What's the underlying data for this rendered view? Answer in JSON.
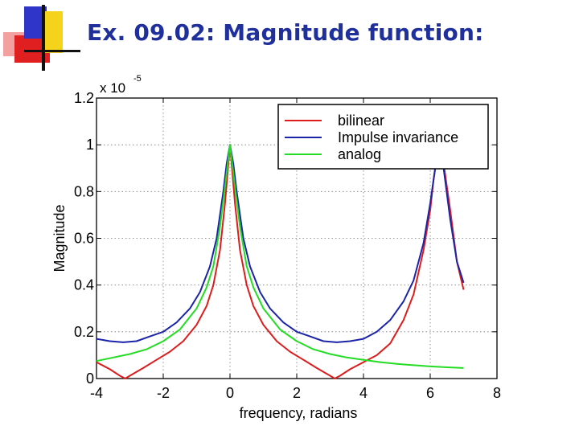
{
  "slide": {
    "title": "Ex. 09.02: Magnitude function:"
  },
  "logo": {
    "colors": {
      "red": "#e02020",
      "blue": "#2f35c9",
      "yellow": "#f5d31a",
      "pink": "#f2a0a0",
      "black": "#111111"
    }
  },
  "chart_data": {
    "type": "line",
    "title": "",
    "xlabel": "frequency, radians",
    "ylabel": "Magnitude",
    "y_scale_label": "x 10",
    "y_scale_exponent": "-5",
    "xlim": [
      -4,
      8
    ],
    "ylim": [
      0,
      1.2
    ],
    "x_ticks": [
      -4,
      -2,
      0,
      2,
      4,
      6,
      8
    ],
    "y_ticks": [
      0,
      0.2,
      0.4,
      0.6,
      0.8,
      1,
      1.2
    ],
    "x_tick_labels": [
      "-4",
      "-2",
      "0",
      "2",
      "4",
      "6",
      "8"
    ],
    "y_tick_labels": [
      "0",
      "0.2",
      "0.4",
      "0.6",
      "0.8",
      "1",
      "1.2"
    ],
    "grid": true,
    "legend_position": "top-right",
    "series": [
      {
        "name": "bilinear",
        "color": "#dd1c1c",
        "x": [
          -4.0,
          -3.6,
          -3.3,
          -3.14,
          -3.0,
          -2.6,
          -2.2,
          -1.8,
          -1.4,
          -1.0,
          -0.7,
          -0.5,
          -0.3,
          -0.15,
          0.0,
          0.15,
          0.3,
          0.5,
          0.7,
          1.0,
          1.4,
          1.8,
          2.2,
          2.6,
          3.0,
          3.14,
          3.3,
          3.6,
          4.0,
          4.4,
          4.8,
          5.2,
          5.5,
          5.8,
          6.0,
          6.1,
          6.2,
          6.28,
          6.4,
          6.6,
          6.8,
          7.0
        ],
        "y": [
          0.07,
          0.04,
          0.012,
          0.0,
          0.012,
          0.045,
          0.08,
          0.115,
          0.16,
          0.23,
          0.31,
          0.4,
          0.55,
          0.75,
          1.0,
          0.75,
          0.55,
          0.4,
          0.31,
          0.23,
          0.16,
          0.115,
          0.08,
          0.045,
          0.012,
          0.0,
          0.012,
          0.04,
          0.07,
          0.1,
          0.15,
          0.25,
          0.36,
          0.55,
          0.72,
          0.85,
          0.95,
          1.0,
          0.92,
          0.72,
          0.5,
          0.38
        ]
      },
      {
        "name": "Impulse invariance",
        "color": "#1c24a8",
        "x": [
          -4.0,
          -3.6,
          -3.2,
          -2.8,
          -2.4,
          -2.0,
          -1.6,
          -1.2,
          -0.9,
          -0.6,
          -0.4,
          -0.2,
          -0.1,
          0.0,
          0.1,
          0.2,
          0.4,
          0.6,
          0.9,
          1.2,
          1.6,
          2.0,
          2.4,
          2.8,
          3.2,
          3.6,
          4.0,
          4.4,
          4.8,
          5.2,
          5.5,
          5.8,
          6.0,
          6.15,
          6.28,
          6.4,
          6.6,
          6.8,
          7.0
        ],
        "y": [
          0.17,
          0.16,
          0.155,
          0.16,
          0.18,
          0.2,
          0.24,
          0.3,
          0.37,
          0.48,
          0.6,
          0.8,
          0.92,
          1.0,
          0.92,
          0.8,
          0.6,
          0.48,
          0.37,
          0.3,
          0.24,
          0.2,
          0.18,
          0.16,
          0.155,
          0.16,
          0.17,
          0.2,
          0.25,
          0.33,
          0.42,
          0.58,
          0.75,
          0.9,
          1.0,
          0.9,
          0.68,
          0.5,
          0.41
        ]
      },
      {
        "name": "analog",
        "color": "#22dd22",
        "x": [
          -4.0,
          -3.5,
          -3.0,
          -2.5,
          -2.0,
          -1.5,
          -1.0,
          -0.7,
          -0.5,
          -0.3,
          -0.15,
          0.0,
          0.15,
          0.3,
          0.5,
          0.7,
          1.0,
          1.5,
          2.0,
          2.5,
          3.0,
          3.5,
          4.0,
          4.5,
          5.0,
          5.5,
          6.0,
          6.5,
          7.0
        ],
        "y": [
          0.075,
          0.09,
          0.105,
          0.125,
          0.16,
          0.21,
          0.3,
          0.39,
          0.48,
          0.65,
          0.82,
          1.0,
          0.82,
          0.65,
          0.48,
          0.39,
          0.3,
          0.21,
          0.16,
          0.125,
          0.105,
          0.09,
          0.08,
          0.07,
          0.063,
          0.057,
          0.052,
          0.048,
          0.045
        ]
      }
    ]
  }
}
